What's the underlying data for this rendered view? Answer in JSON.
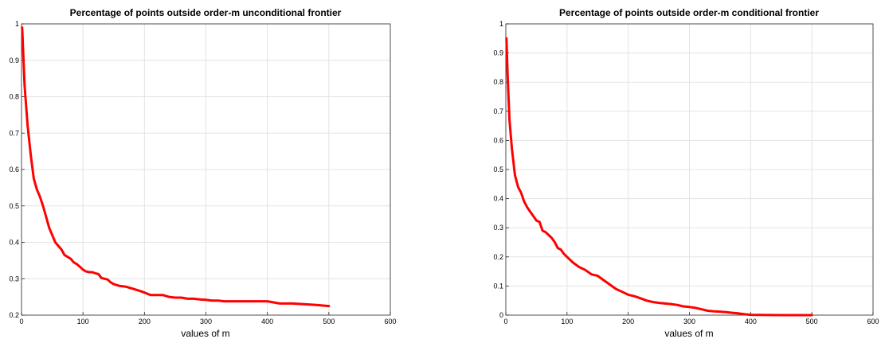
{
  "chart_data": [
    {
      "type": "line",
      "title": "Percentage of points outside order-m unconditional frontier",
      "xlabel": "values of m",
      "ylabel": "",
      "xlim": [
        0,
        600
      ],
      "ylim": [
        0.2,
        1
      ],
      "xticks": [
        "0",
        "100",
        "200",
        "300",
        "400",
        "500",
        "600"
      ],
      "yticks": [
        "0.2",
        "0.3",
        "0.4",
        "0.5",
        "0.6",
        "0.7",
        "0.8",
        "0.9",
        "1"
      ],
      "grid": true,
      "series": [
        {
          "color": "#ff0000",
          "x": [
            1,
            5,
            10,
            15,
            20,
            25,
            30,
            35,
            40,
            45,
            50,
            55,
            60,
            65,
            70,
            75,
            80,
            85,
            90,
            95,
            100,
            105,
            110,
            115,
            120,
            125,
            130,
            135,
            140,
            145,
            150,
            160,
            170,
            180,
            190,
            200,
            210,
            220,
            230,
            240,
            250,
            260,
            270,
            280,
            290,
            300,
            310,
            320,
            330,
            350,
            375,
            400,
            410,
            420,
            440,
            460,
            480,
            500
          ],
          "y": [
            0.99,
            0.83,
            0.72,
            0.64,
            0.575,
            0.545,
            0.525,
            0.5,
            0.47,
            0.44,
            0.42,
            0.4,
            0.39,
            0.38,
            0.365,
            0.36,
            0.355,
            0.345,
            0.34,
            0.333,
            0.325,
            0.32,
            0.318,
            0.318,
            0.315,
            0.313,
            0.302,
            0.3,
            0.298,
            0.29,
            0.285,
            0.28,
            0.278,
            0.273,
            0.268,
            0.262,
            0.255,
            0.255,
            0.255,
            0.25,
            0.248,
            0.248,
            0.245,
            0.245,
            0.243,
            0.242,
            0.24,
            0.24,
            0.238,
            0.238,
            0.238,
            0.238,
            0.235,
            0.232,
            0.232,
            0.23,
            0.228,
            0.225
          ]
        }
      ]
    },
    {
      "type": "line",
      "title": "Percentage of points outside order-m conditional frontier",
      "xlabel": "values of m",
      "ylabel": "",
      "xlim": [
        0,
        600
      ],
      "ylim": [
        0,
        1
      ],
      "xticks": [
        "0",
        "100",
        "200",
        "300",
        "400",
        "500",
        "600"
      ],
      "yticks": [
        "0",
        "0.1",
        "0.2",
        "0.3",
        "0.4",
        "0.5",
        "0.6",
        "0.7",
        "0.8",
        "0.9",
        "1"
      ],
      "grid": true,
      "series": [
        {
          "color": "#ff0000",
          "x": [
            1,
            3,
            6,
            10,
            15,
            20,
            25,
            30,
            35,
            40,
            45,
            50,
            55,
            60,
            65,
            70,
            75,
            80,
            85,
            90,
            95,
            100,
            110,
            120,
            130,
            140,
            150,
            160,
            170,
            180,
            190,
            200,
            210,
            220,
            230,
            240,
            250,
            260,
            270,
            280,
            290,
            300,
            310,
            320,
            330,
            340,
            350,
            360,
            370,
            380,
            390,
            400,
            450,
            500
          ],
          "y": [
            0.95,
            0.82,
            0.67,
            0.57,
            0.48,
            0.44,
            0.42,
            0.39,
            0.37,
            0.355,
            0.34,
            0.325,
            0.32,
            0.29,
            0.285,
            0.275,
            0.265,
            0.25,
            0.23,
            0.225,
            0.21,
            0.2,
            0.18,
            0.165,
            0.155,
            0.14,
            0.135,
            0.12,
            0.105,
            0.09,
            0.08,
            0.07,
            0.065,
            0.058,
            0.05,
            0.045,
            0.042,
            0.04,
            0.038,
            0.035,
            0.03,
            0.028,
            0.025,
            0.02,
            0.015,
            0.013,
            0.012,
            0.01,
            0.008,
            0.006,
            0.003,
            0.001,
            0.0,
            0.0
          ]
        }
      ]
    }
  ]
}
